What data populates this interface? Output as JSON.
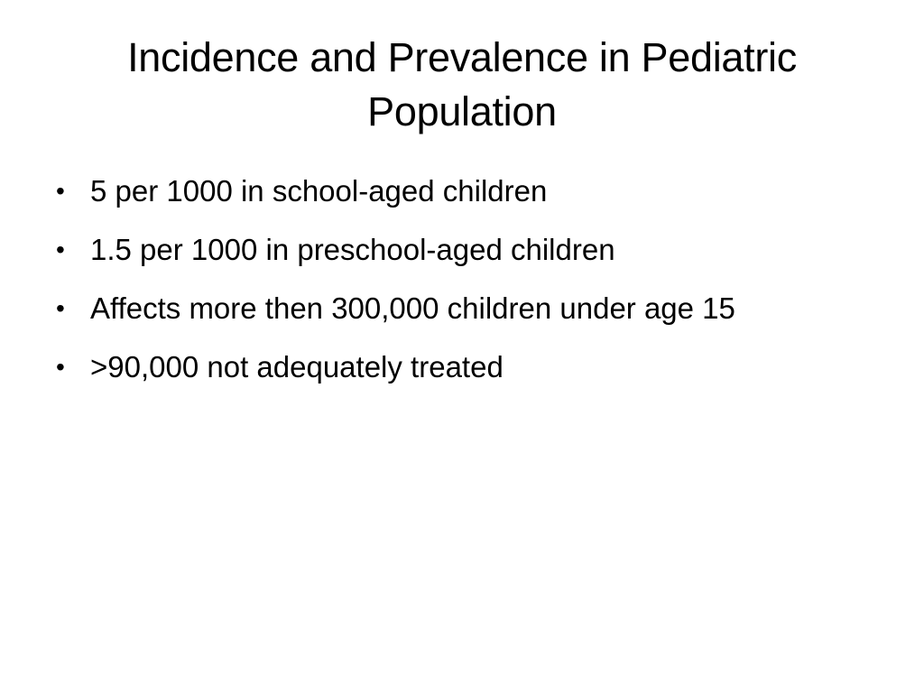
{
  "slide": {
    "title": "Incidence and Prevalence in Pediatric Population",
    "bullets": [
      "5 per 1000 in school-aged children",
      "1.5 per 1000 in preschool-aged children",
      "Affects more then 300,000 children under age 15",
      ">90,000 not adequately treated"
    ]
  }
}
